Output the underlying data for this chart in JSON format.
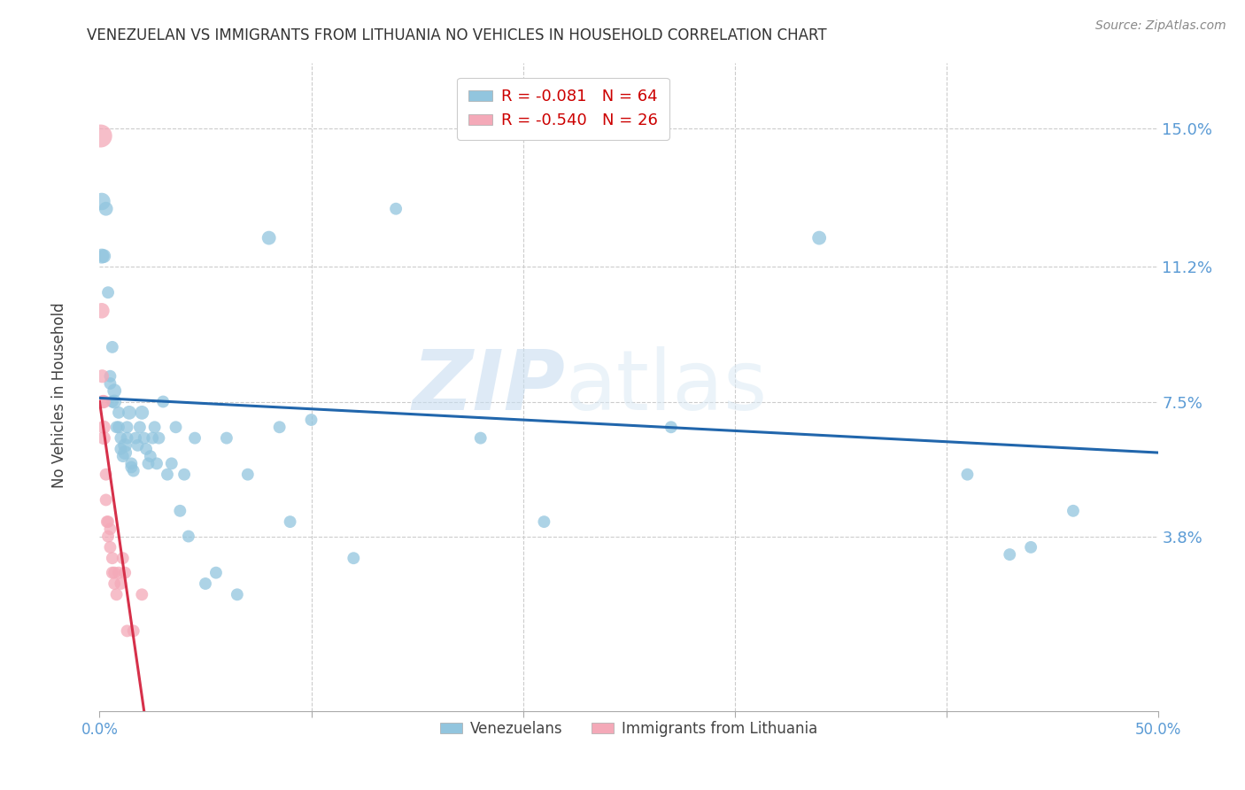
{
  "title": "VENEZUELAN VS IMMIGRANTS FROM LITHUANIA NO VEHICLES IN HOUSEHOLD CORRELATION CHART",
  "source": "Source: ZipAtlas.com",
  "xlabel_ticks_shown": [
    "0.0%",
    "50.0%"
  ],
  "xlabel_ticks_shown_vals": [
    0.0,
    0.5
  ],
  "xlabel_minor_vals": [
    0.1,
    0.2,
    0.3,
    0.4
  ],
  "ylabel_ticks": [
    "15.0%",
    "11.2%",
    "7.5%",
    "3.8%"
  ],
  "ylabel_vals": [
    0.15,
    0.112,
    0.075,
    0.038
  ],
  "ylabel_label": "No Vehicles in Household",
  "legend_label1": "Venezuelans",
  "legend_label2": "Immigrants from Lithuania",
  "R1": "-0.081",
  "N1": "64",
  "R2": "-0.540",
  "N2": "26",
  "color1": "#92c5de",
  "color2": "#f4a9b8",
  "line_color1": "#2166ac",
  "line_color2": "#d6304a",
  "watermark_zip": "ZIP",
  "watermark_atlas": "atlas",
  "xlim": [
    0.0,
    0.5
  ],
  "ylim": [
    -0.01,
    0.168
  ],
  "venezuelan_x": [
    0.001,
    0.001,
    0.002,
    0.003,
    0.004,
    0.005,
    0.005,
    0.006,
    0.006,
    0.007,
    0.007,
    0.008,
    0.009,
    0.009,
    0.01,
    0.01,
    0.011,
    0.012,
    0.012,
    0.013,
    0.013,
    0.014,
    0.015,
    0.015,
    0.016,
    0.017,
    0.018,
    0.019,
    0.02,
    0.021,
    0.022,
    0.023,
    0.024,
    0.025,
    0.026,
    0.027,
    0.028,
    0.03,
    0.032,
    0.034,
    0.036,
    0.038,
    0.04,
    0.042,
    0.045,
    0.05,
    0.055,
    0.06,
    0.065,
    0.07,
    0.08,
    0.085,
    0.09,
    0.1,
    0.12,
    0.14,
    0.18,
    0.21,
    0.27,
    0.34,
    0.41,
    0.43,
    0.44,
    0.46
  ],
  "venezuelan_y": [
    0.13,
    0.115,
    0.115,
    0.128,
    0.105,
    0.082,
    0.08,
    0.09,
    0.075,
    0.078,
    0.075,
    0.068,
    0.072,
    0.068,
    0.065,
    0.062,
    0.06,
    0.063,
    0.061,
    0.068,
    0.065,
    0.072,
    0.057,
    0.058,
    0.056,
    0.065,
    0.063,
    0.068,
    0.072,
    0.065,
    0.062,
    0.058,
    0.06,
    0.065,
    0.068,
    0.058,
    0.065,
    0.075,
    0.055,
    0.058,
    0.068,
    0.045,
    0.055,
    0.038,
    0.065,
    0.025,
    0.028,
    0.065,
    0.022,
    0.055,
    0.12,
    0.068,
    0.042,
    0.07,
    0.032,
    0.128,
    0.065,
    0.042,
    0.068,
    0.12,
    0.055,
    0.033,
    0.035,
    0.045
  ],
  "venezuelan_size": [
    200,
    150,
    130,
    130,
    100,
    100,
    100,
    100,
    100,
    130,
    130,
    100,
    100,
    100,
    100,
    100,
    100,
    130,
    130,
    100,
    100,
    130,
    100,
    100,
    100,
    100,
    100,
    100,
    130,
    100,
    100,
    100,
    100,
    100,
    100,
    100,
    100,
    100,
    100,
    100,
    100,
    100,
    100,
    100,
    100,
    100,
    100,
    100,
    100,
    100,
    130,
    100,
    100,
    100,
    100,
    100,
    100,
    100,
    100,
    130,
    100,
    100,
    100,
    100
  ],
  "lithuanian_x": [
    0.0005,
    0.001,
    0.0012,
    0.0015,
    0.002,
    0.002,
    0.002,
    0.003,
    0.003,
    0.0035,
    0.004,
    0.004,
    0.005,
    0.005,
    0.006,
    0.006,
    0.007,
    0.007,
    0.008,
    0.009,
    0.01,
    0.011,
    0.012,
    0.013,
    0.016,
    0.02
  ],
  "lithuanian_y": [
    0.148,
    0.1,
    0.082,
    0.075,
    0.075,
    0.068,
    0.065,
    0.055,
    0.048,
    0.042,
    0.042,
    0.038,
    0.04,
    0.035,
    0.032,
    0.028,
    0.028,
    0.025,
    0.022,
    0.028,
    0.025,
    0.032,
    0.028,
    0.012,
    0.012,
    0.022
  ],
  "lithuanian_size": [
    350,
    160,
    120,
    120,
    120,
    120,
    120,
    100,
    100,
    100,
    100,
    100,
    100,
    100,
    100,
    100,
    100,
    100,
    100,
    100,
    100,
    100,
    100,
    100,
    100,
    100
  ],
  "ven_trendline_x": [
    0.0,
    0.5
  ],
  "ven_trendline_y": [
    0.076,
    0.061
  ],
  "lit_trendline_x": [
    0.0,
    0.021
  ],
  "lit_trendline_y": [
    0.075,
    -0.01
  ]
}
